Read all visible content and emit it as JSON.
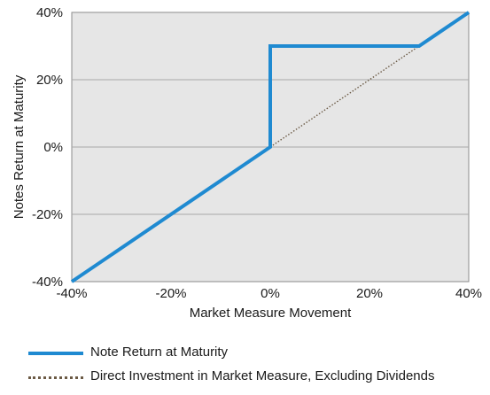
{
  "chart_data": {
    "type": "line",
    "xlabel": "Market Measure Movement",
    "ylabel": "Notes Return at Maturity",
    "xlim": [
      -40,
      40
    ],
    "ylim": [
      -40,
      40
    ],
    "x_ticks": [
      "-40%",
      "-20%",
      "0%",
      "20%",
      "40%"
    ],
    "y_ticks": [
      "-40%",
      "-20%",
      "0%",
      "20%",
      "40%"
    ],
    "grid": "horizontal",
    "background": "#e6e6e6",
    "series": [
      {
        "name": "Note Return at Maturity",
        "style": "solid",
        "color": "#1f8ad1",
        "x": [
          -40,
          0,
          0,
          30,
          40
        ],
        "y": [
          -40,
          0,
          30,
          30,
          40
        ]
      },
      {
        "name": "Direct Investment in Market Measure, Excluding Dividends",
        "style": "dotted",
        "color": "#6b5a45",
        "x": [
          0,
          30
        ],
        "y": [
          0,
          30
        ]
      }
    ],
    "legend_position": "bottom"
  }
}
